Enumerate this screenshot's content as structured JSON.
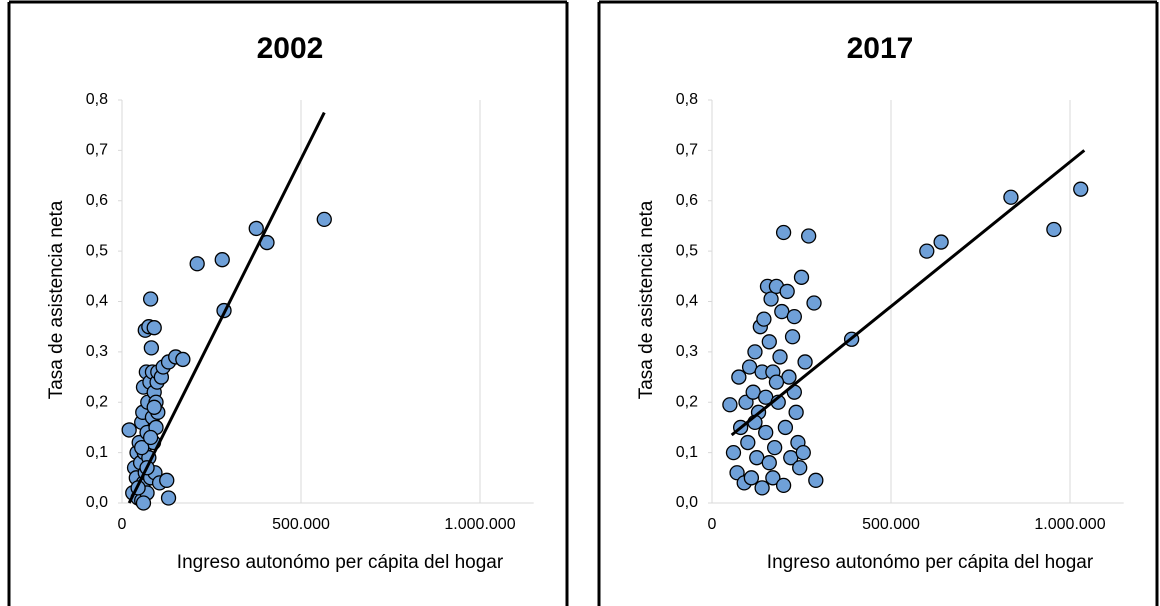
{
  "chart_data": [
    {
      "type": "scatter",
      "title": "2002",
      "x_label": "Ingreso autonómo per cápita del hogar",
      "y_label": "Tasa de asistencia neta",
      "color": "#6fa0d8",
      "x": [
        20000,
        30000,
        35000,
        40000,
        42000,
        45000,
        48000,
        50000,
        52000,
        55000,
        55000,
        58000,
        60000,
        60000,
        62000,
        65000,
        65000,
        68000,
        70000,
        70000,
        72000,
        75000,
        75000,
        78000,
        80000,
        80000,
        82000,
        85000,
        85000,
        88000,
        90000,
        90000,
        92000,
        95000,
        95000,
        98000,
        100000,
        100000,
        105000,
        110000,
        115000,
        125000,
        130000,
        130000,
        150000,
        170000,
        210000,
        280000,
        285000,
        375000,
        405000,
        565000,
        45000,
        55000,
        60000,
        70000,
        80000,
        90000
      ],
      "values": [
        0.145,
        0.02,
        0.07,
        0.05,
        0.1,
        0.01,
        0.12,
        0.03,
        0.08,
        0.16,
        0.005,
        0.18,
        0.04,
        0.23,
        0.1,
        0.343,
        0.06,
        0.26,
        0.02,
        0.14,
        0.2,
        0.35,
        0.09,
        0.24,
        0.405,
        0.05,
        0.308,
        0.17,
        0.26,
        0.12,
        0.348,
        0.22,
        0.06,
        0.2,
        0.15,
        0.24,
        0.18,
        0.26,
        0.04,
        0.25,
        0.27,
        0.045,
        0.01,
        0.28,
        0.29,
        0.285,
        0.475,
        0.483,
        0.382,
        0.545,
        0.517,
        0.563,
        0.03,
        0.11,
        0.0,
        0.07,
        0.13,
        0.19
      ],
      "trend": {
        "x": [
          20000,
          565000
        ],
        "y": [
          0.0,
          0.775
        ]
      },
      "xlim": [
        0,
        1150000
      ],
      "xticks": [
        0,
        {
          "value": 500000,
          "label": "500.000"
        },
        {
          "value": 1000000,
          "label": "1.000.000"
        }
      ],
      "ylim": [
        0,
        0.8
      ],
      "yticks": [
        {
          "value": 0,
          "label": "0,0"
        },
        {
          "value": 0.1,
          "label": "0,1"
        },
        {
          "value": 0.2,
          "label": "0,2"
        },
        {
          "value": 0.3,
          "label": "0,3"
        },
        {
          "value": 0.4,
          "label": "0,4"
        },
        {
          "value": 0.5,
          "label": "0,5"
        },
        {
          "value": 0.6,
          "label": "0,6"
        },
        {
          "value": 0.7,
          "label": "0,7"
        },
        {
          "value": 0.8,
          "label": "0,8"
        }
      ],
      "grid": true
    },
    {
      "type": "scatter",
      "title": "2017",
      "x_label": "Ingreso autonómo per cápita del hogar",
      "y_label": "Tasa de asistencia neta",
      "color": "#6fa0d8",
      "x": [
        50000,
        60000,
        70000,
        75000,
        80000,
        90000,
        95000,
        100000,
        105000,
        110000,
        115000,
        120000,
        125000,
        130000,
        135000,
        140000,
        140000,
        145000,
        150000,
        150000,
        155000,
        160000,
        160000,
        165000,
        170000,
        170000,
        175000,
        180000,
        185000,
        190000,
        195000,
        200000,
        200000,
        205000,
        210000,
        215000,
        220000,
        225000,
        230000,
        235000,
        240000,
        245000,
        250000,
        255000,
        260000,
        270000,
        285000,
        290000,
        390000,
        600000,
        640000,
        835000,
        955000,
        1030000,
        120000,
        180000,
        230000
      ],
      "values": [
        0.195,
        0.1,
        0.06,
        0.25,
        0.15,
        0.04,
        0.2,
        0.12,
        0.27,
        0.05,
        0.22,
        0.3,
        0.09,
        0.18,
        0.35,
        0.03,
        0.26,
        0.365,
        0.14,
        0.21,
        0.43,
        0.08,
        0.32,
        0.405,
        0.05,
        0.26,
        0.11,
        0.43,
        0.2,
        0.29,
        0.38,
        0.537,
        0.035,
        0.15,
        0.42,
        0.25,
        0.09,
        0.33,
        0.37,
        0.18,
        0.12,
        0.07,
        0.448,
        0.1,
        0.28,
        0.53,
        0.397,
        0.045,
        0.325,
        0.5,
        0.518,
        0.607,
        0.543,
        0.623,
        0.16,
        0.24,
        0.22
      ],
      "trend": {
        "x": [
          55000,
          1040000
        ],
        "y": [
          0.135,
          0.7
        ]
      },
      "xlim": [
        0,
        1150000
      ],
      "xticks": [
        0,
        {
          "value": 500000,
          "label": "500.000"
        },
        {
          "value": 1000000,
          "label": "1.000.000"
        }
      ],
      "ylim": [
        0,
        0.8
      ],
      "yticks": [
        {
          "value": 0,
          "label": "0,0"
        },
        {
          "value": 0.1,
          "label": "0,1"
        },
        {
          "value": 0.2,
          "label": "0,2"
        },
        {
          "value": 0.3,
          "label": "0,3"
        },
        {
          "value": 0.4,
          "label": "0,4"
        },
        {
          "value": 0.5,
          "label": "0,5"
        },
        {
          "value": 0.6,
          "label": "0,6"
        },
        {
          "value": 0.7,
          "label": "0,7"
        },
        {
          "value": 0.8,
          "label": "0,8"
        }
      ],
      "grid": true
    }
  ]
}
